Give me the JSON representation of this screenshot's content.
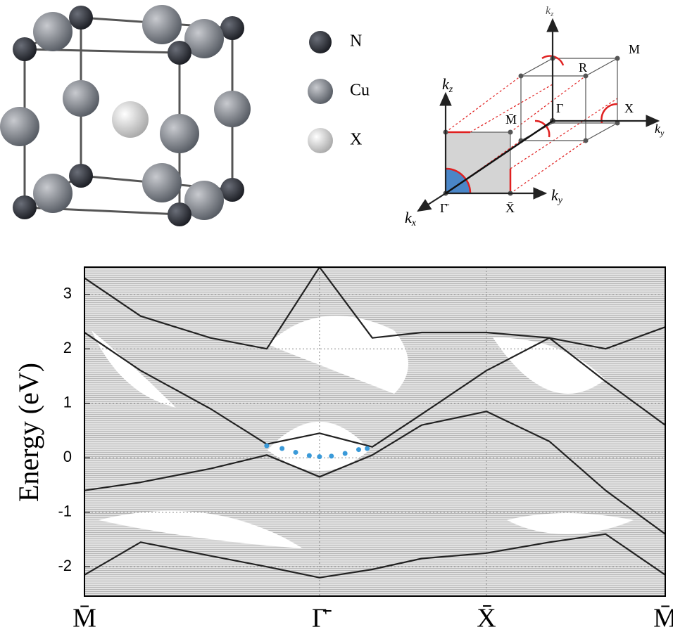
{
  "structure": {
    "legend": [
      "N",
      "Cu",
      "X"
    ]
  },
  "brillouin_zone": {
    "labels": {
      "M": "M",
      "R": "R",
      "Gamma": "Γ",
      "X": "X",
      "M_bar": "M̄",
      "Gamma_bar": "Γ̄",
      "X_bar": "X̄"
    },
    "axes": {
      "kz_top": {
        "k": "k",
        "sub": "z"
      },
      "ky_right": {
        "k": "k",
        "sub": "y"
      },
      "kz": {
        "k": "k",
        "sub": "z"
      },
      "ky": {
        "k": "k",
        "sub": "y"
      },
      "kx": {
        "k": "k",
        "sub": "x"
      }
    }
  },
  "chart_data": {
    "type": "line",
    "y_label": "Energy (eV)",
    "xlim": [
      0,
      3.41
    ],
    "xticks": [
      {
        "value": 0,
        "label": "M̄"
      },
      {
        "value": 1.38,
        "label": "Γ̄"
      },
      {
        "value": 2.36,
        "label": "X̄"
      },
      {
        "value": 3.41,
        "label": "M̄"
      }
    ],
    "ylim": [
      -2.54,
      3.5
    ],
    "yticks": [
      3,
      2,
      1,
      0,
      -1,
      -2
    ],
    "grid": true,
    "x": [
      0,
      0.33,
      0.74,
      1.07,
      1.38,
      1.69,
      1.98,
      2.36,
      2.73,
      3.06,
      3.41
    ],
    "series": [
      {
        "color": "#222222",
        "values": [
          -0.6,
          -0.45,
          -0.2,
          0.05,
          -0.35,
          0.05,
          0.6,
          0.85,
          0.3,
          -0.6,
          -1.4
        ]
      },
      {
        "color": "#222222",
        "values": [
          2.3,
          1.6,
          0.9,
          0.25,
          0.45,
          0.2,
          0.8,
          1.6,
          2.2,
          2.0,
          2.4
        ]
      },
      {
        "color": "#222222",
        "values": [
          3.3,
          2.6,
          2.2,
          2.0,
          3.5,
          2.2,
          2.3,
          2.3,
          2.2,
          1.4,
          0.6
        ]
      },
      {
        "color": "#222222",
        "values": [
          -2.15,
          -1.55,
          -1.8,
          -2.0,
          -2.2,
          -2.05,
          -1.85,
          -1.75,
          -1.55,
          -1.4,
          -2.15
        ]
      }
    ],
    "surface_state": {
      "color": "#3a9ad9",
      "x": [
        1.07,
        1.16,
        1.24,
        1.32,
        1.38,
        1.45,
        1.53,
        1.61,
        1.66
      ],
      "values": [
        0.22,
        0.17,
        0.1,
        0.04,
        0.02,
        0.03,
        0.08,
        0.15,
        0.17
      ]
    }
  }
}
